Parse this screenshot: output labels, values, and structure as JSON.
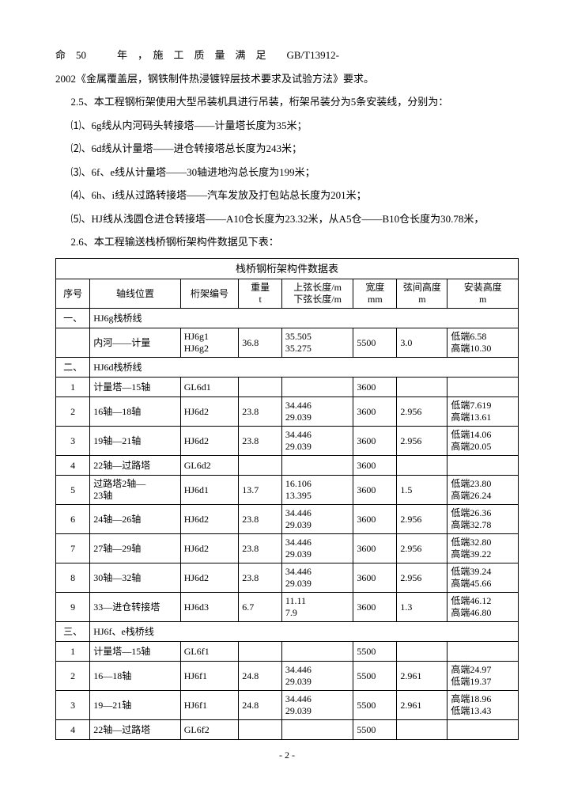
{
  "p1_a": "命　50　　　年　，　施　工　质　量　满　足　　GB/T13912-",
  "p1_b": "2002《金属覆盖层，钢铁制件热浸镀锌层技术要求及试验方法》要求。",
  "p2": "2.5、本工程钢桁架使用大型吊装机具进行吊装，桁架吊装分为5条安装线，分别为：",
  "p3": "⑴、6g线从内河码头转接塔——计量塔长度为35米；",
  "p4": "⑵、6d线从计量塔——进仓转接塔总长度为243米；",
  "p5": "⑶、6f、e线从计量塔——30轴进地沟总长度为199米；",
  "p6": "⑷、6h、i线从过路转接塔——汽车发放及打包站总长度为201米；",
  "p7": "⑸、HJ线从浅圆仓进仓转接塔——A10仓长度为23.32米，从A5仓——B10仓长度为30.78米，",
  "p8": "2.6、本工程输送栈桥钢桁架构件数据见下表：",
  "table_title": "栈桥钢桁架构件数据表",
  "headers": {
    "seq": "序号",
    "axis": "轴线位置",
    "code": "桁架编号",
    "wt": "重量",
    "wt_u": "t",
    "len1": "上弦长度/m",
    "len2": "下弦长度/m",
    "width": "宽度",
    "width_u": "mm",
    "ht": "弦间高度",
    "ht_u": "m",
    "inst": "安装高度",
    "inst_u": "m"
  },
  "sec1": {
    "num": "一、",
    "label": "HJ6g栈桥线"
  },
  "r1": {
    "axis": "内河——计量",
    "code1": "HJ6g1",
    "code2": "HJ6g2",
    "wt": "36.8",
    "len1": "35.505",
    "len2": "35.275",
    "width": "5500",
    "ht": "3.0",
    "inst1": "低端6.58",
    "inst2": "高端10.30"
  },
  "sec2": {
    "num": "二、",
    "label": "HJ6d栈桥线"
  },
  "r2_1": {
    "num": "1",
    "axis": "计量塔—15轴",
    "code": "GL6d1",
    "width": "3600"
  },
  "r2_2": {
    "num": "2",
    "axis": "16轴—18轴",
    "code": "HJ6d2",
    "wt": "23.8",
    "len1": "34.446",
    "len2": "29.039",
    "width": "3600",
    "ht": "2.956",
    "inst1": "低端7.619",
    "inst2": "高端13.61"
  },
  "r2_3": {
    "num": "3",
    "axis": "19轴—21轴",
    "code": "HJ6d2",
    "wt": "23.8",
    "len1": "34.446",
    "len2": "29.039",
    "width": "3600",
    "ht": "2.956",
    "inst1": "低端14.06",
    "inst2": "高端20.05"
  },
  "r2_4": {
    "num": "4",
    "axis": "22轴—过路塔",
    "code": "GL6d2",
    "width": "3600"
  },
  "r2_5": {
    "num": "5",
    "axis1": "过路塔2轴—",
    "axis2": "23轴",
    "code": "HJ6d1",
    "wt": "13.7",
    "len1": "16.106",
    "len2": "13.395",
    "width": "3600",
    "ht": "1.5",
    "inst1": "低端23.80",
    "inst2": "高端26.24"
  },
  "r2_6": {
    "num": "6",
    "axis": "24轴—26轴",
    "code": "HJ6d2",
    "wt": "23.8",
    "len1": "34.446",
    "len2": "29.039",
    "width": "3600",
    "ht": "2.956",
    "inst1": "低端26.36",
    "inst2": "高端32.78"
  },
  "r2_7": {
    "num": "7",
    "axis": "27轴—29轴",
    "code": "HJ6d2",
    "wt": "23.8",
    "len1": "34.446",
    "len2": "29.039",
    "width": "3600",
    "ht": "2.956",
    "inst1": "低端32.80",
    "inst2": "高端39.22"
  },
  "r2_8": {
    "num": "8",
    "axis": "30轴—32轴",
    "code": "HJ6d2",
    "wt": "23.8",
    "len1": "34.446",
    "len2": "29.039",
    "width": "3600",
    "ht": "2.956",
    "inst1": "低端39.24",
    "inst2": "高端45.66"
  },
  "r2_9": {
    "num": "9",
    "axis": "33—进仓转接塔",
    "code": "HJ6d3",
    "wt": "6.7",
    "len1": "11.11",
    "len2": "7.9",
    "width": "3600",
    "ht": "1.3",
    "inst1": "低端46.12",
    "inst2": "高端46.80"
  },
  "sec3": {
    "num": "三、",
    "label": "HJ6f、e栈桥线"
  },
  "r3_1": {
    "num": "1",
    "axis": "计量塔—15轴",
    "code": "GL6f1",
    "width": "5500"
  },
  "r3_2": {
    "num": "2",
    "axis": "16—18轴",
    "code": "HJ6f1",
    "wt": "24.8",
    "len1": "34.446",
    "len2": "29.039",
    "width": "5500",
    "ht": "2.961",
    "inst1": "高端24.97",
    "inst2": "低端19.37"
  },
  "r3_3": {
    "num": "3",
    "axis": "19—21轴",
    "code": "HJ6f1",
    "wt": "24.8",
    "len1": "34.446",
    "len2": "29.039",
    "width": "5500",
    "ht": "2.961",
    "inst1": "高端18.96",
    "inst2": "低端13.43"
  },
  "r3_4": {
    "num": "4",
    "axis": "22轴—过路塔",
    "code": "GL6f2",
    "width": "5500"
  },
  "page": "- 2 -"
}
